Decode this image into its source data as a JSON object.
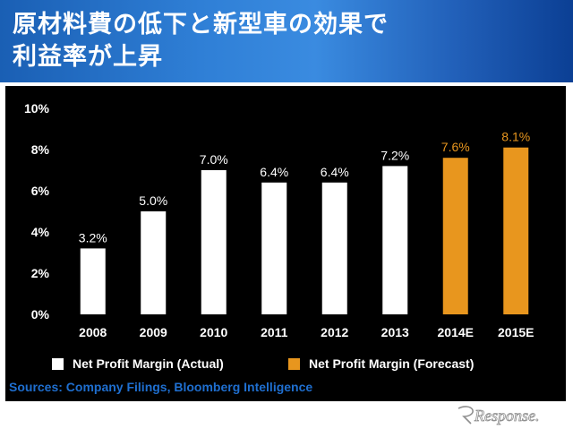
{
  "slide": {
    "title_line1": "原材料費の低下と新型車の効果で",
    "title_line2": "利益率が上昇"
  },
  "chart_data": {
    "type": "bar",
    "categories": [
      "2008",
      "2009",
      "2010",
      "2011",
      "2012",
      "2013",
      "2014E",
      "2015E"
    ],
    "values": [
      3.2,
      5.0,
      7.0,
      6.4,
      6.4,
      7.2,
      7.6,
      8.1
    ],
    "data_labels": [
      "3.2%",
      "5.0%",
      "7.0%",
      "6.4%",
      "6.4%",
      "7.2%",
      "7.6%",
      "8.1%"
    ],
    "series_kind": [
      "actual",
      "actual",
      "actual",
      "actual",
      "actual",
      "actual",
      "forecast",
      "forecast"
    ],
    "y_ticks": [
      "0%",
      "2%",
      "4%",
      "6%",
      "8%",
      "10%"
    ],
    "ylim": [
      0,
      10
    ],
    "grid": false,
    "legend_position": "bottom",
    "legend": [
      {
        "label": "Net Profit Margin (Actual)",
        "color": "#ffffff"
      },
      {
        "label": "Net Profit Margin (Forecast)",
        "color": "#e8961e"
      }
    ],
    "colors": {
      "actual": "#ffffff",
      "forecast": "#e8961e",
      "background": "#000000"
    }
  },
  "footer": {
    "source": "Sources: Company Filings, Bloomberg Intelligence",
    "watermark": "Response."
  }
}
